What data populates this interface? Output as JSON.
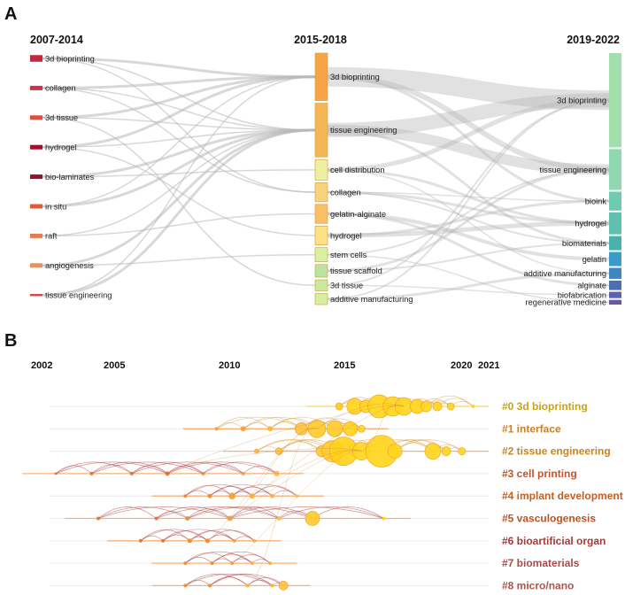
{
  "chart_data": [
    {
      "type": "sankey",
      "panel": "A",
      "stages": [
        "2007-2014",
        "2015-2018",
        "2019-2022"
      ],
      "nodes_2007_2014": [
        {
          "label": "3d bioprinting",
          "weight": 3,
          "color": "#c0283e"
        },
        {
          "label": "collagen",
          "weight": 2,
          "color": "#cc3347"
        },
        {
          "label": "3d tissue",
          "weight": 2,
          "color": "#d9503f"
        },
        {
          "label": "hydrogel",
          "weight": 2,
          "color": "#a0102a"
        },
        {
          "label": "bio-laminates",
          "weight": 2,
          "color": "#8e1530"
        },
        {
          "label": "in situ",
          "weight": 2,
          "color": "#e05a3a"
        },
        {
          "label": "raft",
          "weight": 2,
          "color": "#e57b4f"
        },
        {
          "label": "angiogenesis",
          "weight": 2,
          "color": "#ec9055"
        },
        {
          "label": "tissue engineering",
          "weight": 1,
          "color": "#d24a4a"
        }
      ],
      "nodes_2015_2018": [
        {
          "label": "3d bioprinting",
          "weight": 30,
          "color": "#f5a548"
        },
        {
          "label": "tissue engineering",
          "weight": 34,
          "color": "#f7b656"
        },
        {
          "label": "cell distribution",
          "weight": 13,
          "color": "#eef0a0"
        },
        {
          "label": "collagen",
          "weight": 12,
          "color": "#f9d27c"
        },
        {
          "label": "gelatin-alginate",
          "weight": 12,
          "color": "#f8c066"
        },
        {
          "label": "hydrogel",
          "weight": 12,
          "color": "#fbe284"
        },
        {
          "label": "stem cells",
          "weight": 9,
          "color": "#d9f0a0"
        },
        {
          "label": "tissue scaffold",
          "weight": 8,
          "color": "#b8e3a0"
        },
        {
          "label": "3d tissue",
          "weight": 7,
          "color": "#c8ea9a"
        },
        {
          "label": "additive manufacturing",
          "weight": 7,
          "color": "#d6ee9e"
        }
      ],
      "nodes_2019_2022": [
        {
          "label": "3d bioprinting",
          "weight": 60,
          "color": "#a3deaf"
        },
        {
          "label": "tissue engineering",
          "weight": 26,
          "color": "#8fd8b0"
        },
        {
          "label": "bioink",
          "weight": 12,
          "color": "#6fcbb0"
        },
        {
          "label": "hydrogel",
          "weight": 14,
          "color": "#5fc0ad"
        },
        {
          "label": "biomaterials",
          "weight": 9,
          "color": "#48b2ab"
        },
        {
          "label": "gelatin",
          "weight": 9,
          "color": "#3a9bc8"
        },
        {
          "label": "additive manufacturing",
          "weight": 7,
          "color": "#3e86c0"
        },
        {
          "label": "alginate",
          "weight": 6,
          "color": "#4a6fb3"
        },
        {
          "label": "biofabrication",
          "weight": 4,
          "color": "#5a62b0"
        },
        {
          "label": "regenerative medicine",
          "weight": 3,
          "color": "#6a55a6"
        }
      ]
    },
    {
      "type": "timeline",
      "panel": "B",
      "year_ticks": [
        "2002",
        "2005",
        "2010",
        "2015",
        "2020",
        "2021"
      ],
      "xlim": [
        2002,
        2022
      ],
      "clusters": [
        {
          "label": "#0 3d bioprinting",
          "color": "#c9a21d",
          "start": 2002.3,
          "end": 2022,
          "nodes": [
            [
              2015.3,
              4
            ],
            [
              2016,
              9
            ],
            [
              2016.5,
              7
            ],
            [
              2017.1,
              13
            ],
            [
              2017.7,
              11
            ],
            [
              2018.2,
              10
            ],
            [
              2018.8,
              8
            ],
            [
              2019.2,
              6
            ],
            [
              2019.7,
              5
            ],
            [
              2020.3,
              4
            ],
            [
              2021.3,
              2
            ]
          ]
        },
        {
          "label": "#1 interface",
          "color": "#cf7f1f",
          "start": 2002.3,
          "end": 2022,
          "nodes": [
            [
              2009.8,
              2
            ],
            [
              2011,
              3
            ],
            [
              2012.2,
              3
            ],
            [
              2013.6,
              7
            ],
            [
              2014.3,
              10
            ],
            [
              2015.1,
              9
            ],
            [
              2015.8,
              8
            ],
            [
              2016.3,
              4
            ]
          ]
        },
        {
          "label": "#2 tissue engineering",
          "color": "#c88422",
          "start": 2002.3,
          "end": 2022,
          "nodes": [
            [
              2011.6,
              3
            ],
            [
              2012.6,
              4
            ],
            [
              2014.5,
              6
            ],
            [
              2015,
              12
            ],
            [
              2015.5,
              16
            ],
            [
              2016.3,
              10
            ],
            [
              2017.2,
              18
            ],
            [
              2017.8,
              8
            ],
            [
              2019.5,
              9
            ],
            [
              2020.1,
              5
            ],
            [
              2020.8,
              4
            ]
          ]
        },
        {
          "label": "#3 cell printing",
          "color": "#c0552e",
          "start": 2002.3,
          "end": 2022,
          "nodes": [
            [
              2002.6,
              1.5
            ],
            [
              2004.2,
              2
            ],
            [
              2006,
              2
            ],
            [
              2007.6,
              2.5
            ],
            [
              2009.2,
              2
            ],
            [
              2011,
              2
            ],
            [
              2012.5,
              3
            ]
          ]
        },
        {
          "label": "#4 implant development",
          "color": "#c45f22",
          "start": 2002.3,
          "end": 2022,
          "nodes": [
            [
              2008.4,
              2
            ],
            [
              2009.5,
              2.5
            ],
            [
              2010.5,
              3.5
            ],
            [
              2011.4,
              3
            ],
            [
              2012.3,
              2.5
            ],
            [
              2013.4,
              2
            ]
          ]
        },
        {
          "label": "#5 vasculogenesis",
          "color": "#b75525",
          "start": 2002.3,
          "end": 2022,
          "nodes": [
            [
              2004.5,
              2
            ],
            [
              2007.1,
              2
            ],
            [
              2008.5,
              2.5
            ],
            [
              2010.4,
              3
            ],
            [
              2012.6,
              2.5
            ],
            [
              2014.1,
              8
            ],
            [
              2017.3,
              2
            ]
          ]
        },
        {
          "label": "#6 bioartificial organ",
          "color": "#a53a3a",
          "start": 2002.3,
          "end": 2022,
          "nodes": [
            [
              2006.4,
              2
            ],
            [
              2007.4,
              2
            ],
            [
              2008.6,
              2.5
            ],
            [
              2009.4,
              2.5
            ],
            [
              2010.6,
              2
            ],
            [
              2011.5,
              2
            ]
          ]
        },
        {
          "label": "#7 biomaterials",
          "color": "#a84a4a",
          "start": 2002.3,
          "end": 2022,
          "nodes": [
            [
              2008.4,
              2
            ],
            [
              2009.6,
              2
            ],
            [
              2010.5,
              2
            ],
            [
              2011.4,
              2
            ],
            [
              2012.2,
              2
            ]
          ]
        },
        {
          "label": "#8 micro/nano",
          "color": "#a9564a",
          "start": 2002.3,
          "end": 2022,
          "nodes": [
            [
              2008.4,
              2
            ],
            [
              2009.5,
              2
            ],
            [
              2011.2,
              2
            ],
            [
              2012.3,
              2
            ],
            [
              2012.8,
              5
            ]
          ]
        }
      ]
    }
  ]
}
